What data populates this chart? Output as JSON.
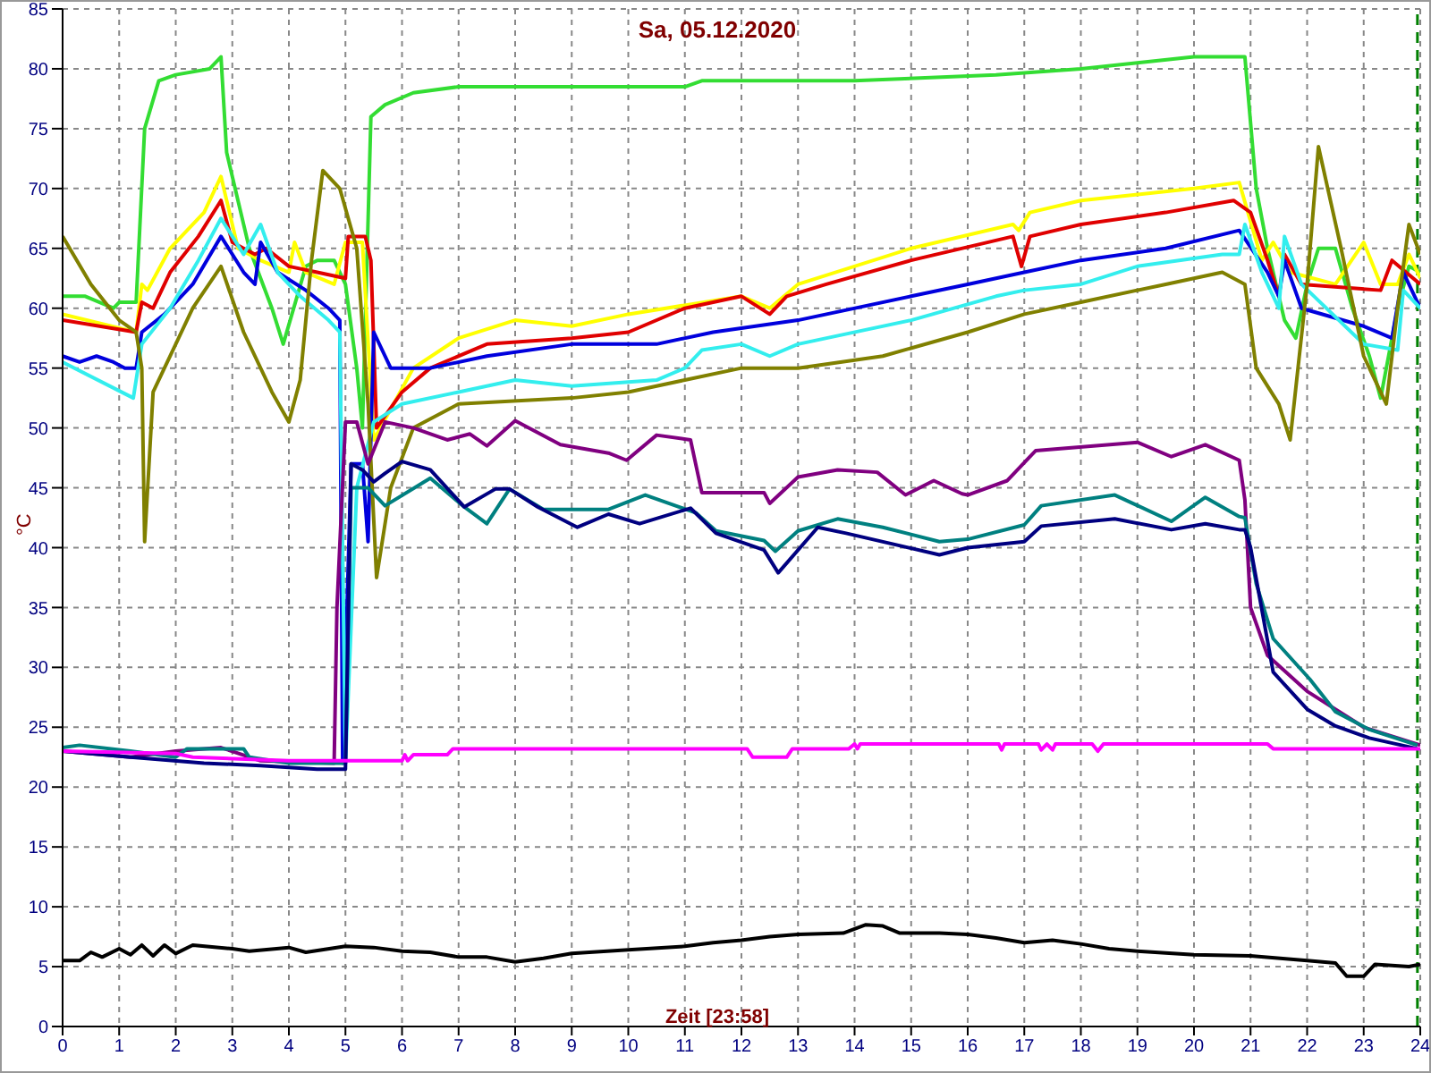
{
  "chart_data": {
    "type": "line",
    "title": "Sa, 05.12.2020",
    "xlabel": "Zeit [23:58]",
    "ylabel": "°C",
    "xlim": [
      0,
      24
    ],
    "ylim": [
      0,
      85
    ],
    "xticks": [
      0,
      1,
      2,
      3,
      4,
      5,
      6,
      7,
      8,
      9,
      10,
      11,
      12,
      13,
      14,
      15,
      16,
      17,
      18,
      19,
      20,
      21,
      22,
      23,
      24
    ],
    "yticks": [
      0,
      5,
      10,
      15,
      20,
      25,
      30,
      35,
      40,
      45,
      50,
      55,
      60,
      65,
      70,
      75,
      80,
      85
    ],
    "grid": true,
    "ref_lines": [
      {
        "axis": "x",
        "value": 23.95,
        "color": "#008000",
        "line_style": "dashed"
      }
    ],
    "series": [
      {
        "color": "#33dd33",
        "x": [
          0,
          0.4,
          0.9,
          1.0,
          1.3,
          1.45,
          1.7,
          2.0,
          2.6,
          2.8,
          2.9,
          3.3,
          3.7,
          3.9,
          4.3,
          4.5,
          4.8,
          5.0,
          5.2,
          5.3,
          5.45,
          5.7,
          6.2,
          7.0,
          11.0,
          11.3,
          14.0,
          16.5,
          18.0,
          19.0,
          20.0,
          20.9,
          21.1,
          21.3,
          21.6,
          21.8,
          22.0,
          22.2,
          22.5,
          22.8,
          23.1,
          23.3,
          23.6,
          23.8,
          24
        ],
        "values": [
          61,
          61,
          60,
          60.5,
          60.5,
          75,
          79,
          79.5,
          80,
          81,
          73,
          65,
          60,
          57,
          63.5,
          64,
          64,
          62,
          55,
          50,
          76,
          77,
          78,
          78.5,
          78.5,
          79,
          79,
          79.5,
          80,
          80.5,
          81,
          81,
          70,
          65,
          59,
          57.5,
          62,
          65,
          65,
          60,
          56,
          52.5,
          60,
          63.5,
          63
        ]
      },
      {
        "color": "#ffff00",
        "x": [
          0,
          1.3,
          1.4,
          1.5,
          1.9,
          2.5,
          2.8,
          3.1,
          3.5,
          4.0,
          4.1,
          4.3,
          4.8,
          5.0,
          5.3,
          5.5,
          6.2,
          7,
          8,
          9,
          10,
          12,
          12.5,
          13,
          15,
          16.8,
          16.9,
          17.1,
          18,
          20,
          20.8,
          21.2,
          21.4,
          21.7,
          22.5,
          23.0,
          23.3,
          23.6,
          23.8,
          24
        ],
        "values": [
          59.5,
          58,
          62,
          61.5,
          65,
          68,
          71,
          65,
          64,
          63,
          65.5,
          63,
          62,
          65.5,
          65.5,
          49,
          55,
          57.5,
          59,
          58.5,
          59.5,
          61,
          60,
          62,
          65,
          67,
          66.5,
          68,
          69,
          70,
          70.5,
          64,
          65.5,
          63,
          62,
          65.5,
          62,
          62,
          64.5,
          62.5
        ]
      },
      {
        "color": "#e00000",
        "x": [
          0,
          1.3,
          1.4,
          1.6,
          1.9,
          2.4,
          2.8,
          3.0,
          3.4,
          3.6,
          4.0,
          4.5,
          5.0,
          5.05,
          5.35,
          5.45,
          5.55,
          6.0,
          6.5,
          7.5,
          9,
          10,
          11,
          12,
          12.5,
          12.8,
          13.5,
          15,
          16.8,
          16.95,
          17.1,
          18,
          19.5,
          20.7,
          21.0,
          21.3,
          21.5,
          21.6,
          21.9,
          23.3,
          23.5,
          24
        ],
        "values": [
          59,
          58,
          60.5,
          60,
          63,
          66,
          69,
          65.5,
          64.5,
          65,
          63.5,
          63,
          62.5,
          66,
          66,
          64,
          50,
          53,
          55,
          57,
          57.5,
          58,
          60,
          61,
          59.5,
          61,
          62,
          64,
          66,
          63.5,
          66,
          67,
          68,
          69,
          68,
          64,
          61,
          64.5,
          62,
          61.5,
          64,
          62
        ]
      },
      {
        "color": "#0000dd",
        "x": [
          0,
          0.3,
          0.6,
          0.9,
          1.1,
          1.3,
          1.4,
          1.8,
          2.3,
          2.8,
          3.2,
          3.4,
          3.5,
          3.8,
          4.3,
          4.7,
          4.9,
          4.95,
          5.1,
          5.3,
          5.4,
          5.5,
          5.8,
          6.5,
          7.5,
          9,
          10.5,
          11.5,
          13,
          15,
          16,
          17,
          18,
          19.5,
          20.8,
          21.3,
          21.5,
          21.6,
          21.9,
          23,
          23.5,
          23.7,
          24
        ],
        "values": [
          56,
          55.5,
          56,
          55.5,
          55,
          55,
          58,
          59.5,
          62,
          66,
          63,
          62,
          65.5,
          63,
          61.5,
          60,
          59,
          22,
          47,
          47,
          40.5,
          58,
          55,
          55,
          56,
          57,
          57,
          58,
          59,
          61,
          62,
          63,
          64,
          65,
          66.5,
          63,
          61,
          64,
          60,
          58.5,
          57.5,
          63,
          60
        ]
      },
      {
        "color": "#33eeee",
        "x": [
          0,
          1.25,
          1.4,
          1.9,
          2.4,
          2.8,
          3.2,
          3.5,
          3.8,
          4.2,
          4.7,
          4.9,
          5.0,
          5.2,
          5.5,
          6,
          7,
          8,
          9,
          10.5,
          11,
          11.3,
          12,
          12.5,
          13,
          15,
          16.5,
          17,
          18,
          19,
          20.5,
          20.8,
          20.9,
          21.2,
          21.5,
          21.6,
          21.9,
          23,
          23.6,
          23.7,
          24
        ],
        "values": [
          55.5,
          52.5,
          57,
          60,
          64,
          67.5,
          64.5,
          67,
          63,
          61,
          59,
          58,
          22,
          45,
          50.5,
          52,
          53,
          54,
          53.5,
          54,
          55,
          56.5,
          57,
          56,
          57,
          59,
          61,
          61.5,
          62,
          63.5,
          64.5,
          64.5,
          67,
          63,
          60,
          66,
          62,
          57,
          56.5,
          61.5,
          60
        ]
      },
      {
        "color": "#808000",
        "x": [
          0,
          0.5,
          1.0,
          1.3,
          1.4,
          1.45,
          1.6,
          2.0,
          2.3,
          2.8,
          3.2,
          3.7,
          4.0,
          4.2,
          4.4,
          4.6,
          4.9,
          5.2,
          5.4,
          5.55,
          5.8,
          6.2,
          7,
          9,
          10,
          11,
          12,
          13,
          14.5,
          16,
          17,
          18,
          19.5,
          20.5,
          20.9,
          21.1,
          21.5,
          21.7,
          22.0,
          22.2,
          22.6,
          23.0,
          23.2,
          23.4,
          23.6,
          23.8,
          24
        ],
        "values": [
          66,
          62,
          59,
          58,
          55,
          40.5,
          53,
          57,
          60,
          63.5,
          58,
          53,
          50.5,
          54,
          64,
          71.5,
          70,
          65,
          52,
          37.5,
          45,
          50,
          52,
          52.5,
          53,
          54,
          55,
          55,
          56,
          58,
          59.5,
          60.5,
          62,
          63,
          62,
          55,
          52,
          49,
          62,
          73.5,
          65,
          56,
          54,
          52,
          60,
          67,
          64.5
        ]
      },
      {
        "color": "#800080",
        "x": [
          0,
          1.2,
          2,
          2.8,
          3.5,
          4.8,
          4.85,
          5.0,
          5.2,
          5.4,
          5.7,
          6.2,
          6.8,
          7.2,
          7.5,
          8.0,
          8.8,
          9.65,
          9.97,
          10.5,
          11.1,
          11.3,
          12.4,
          12.5,
          13.0,
          13.7,
          14.4,
          14.9,
          15.4,
          15.9,
          16.0,
          16.7,
          17.2,
          19.0,
          19.6,
          20.2,
          20.8,
          20.9,
          21.0,
          21.3,
          22,
          23,
          24
        ],
        "values": [
          23,
          22.5,
          23,
          23.3,
          22.2,
          22,
          35,
          50.5,
          50.5,
          47,
          50.5,
          50,
          49,
          49.5,
          48.5,
          50.6,
          48.6,
          47.9,
          47.3,
          49.4,
          49,
          44.6,
          44.6,
          43.7,
          45.9,
          46.5,
          46.3,
          44.4,
          45.6,
          44.5,
          44.4,
          45.6,
          48.1,
          48.8,
          47.6,
          48.6,
          47.3,
          44,
          35,
          31,
          28,
          25,
          23.5
        ]
      },
      {
        "color": "#008080",
        "x": [
          0,
          0.3,
          1.2,
          2,
          2.2,
          3.2,
          3.3,
          4,
          5.0,
          5.1,
          5.4,
          5.7,
          6.5,
          7.1,
          7.5,
          7.9,
          8.5,
          9.65,
          10.3,
          11.2,
          11.55,
          12.4,
          12.6,
          13.0,
          13.7,
          14.5,
          15.5,
          16.0,
          17.0,
          17.3,
          18.6,
          19.6,
          20.2,
          20.8,
          20.9,
          21.1,
          21.4,
          22.05,
          22.5,
          23.1,
          23.95
        ],
        "values": [
          23.3,
          23.5,
          23,
          22.5,
          23.2,
          23.2,
          22.5,
          22,
          22,
          45,
          45,
          43.5,
          45.8,
          43.4,
          42,
          44.9,
          43.2,
          43.2,
          44.4,
          42.9,
          41.4,
          40.6,
          39.7,
          41.4,
          42.4,
          41.7,
          40.5,
          40.7,
          41.9,
          43.5,
          44.4,
          42.2,
          44.2,
          42.6,
          42.5,
          37,
          32.4,
          29,
          26.3,
          24.8,
          23.5
        ]
      },
      {
        "color": "#000080",
        "x": [
          0,
          1.2,
          2.5,
          3.5,
          4.5,
          5.0,
          5.1,
          5.3,
          5.5,
          5.7,
          6,
          6.5,
          7.1,
          7.65,
          7.9,
          8.4,
          9.1,
          9.65,
          10.2,
          11.1,
          11.55,
          12.4,
          12.65,
          13.35,
          13.85,
          15.5,
          16.0,
          17.0,
          17.3,
          18.6,
          19.6,
          20.2,
          20.8,
          20.9,
          21.0,
          21.4,
          22.0,
          22.5,
          23.1,
          23.95
        ],
        "values": [
          23,
          22.5,
          22,
          21.8,
          21.5,
          21.5,
          47,
          46.5,
          45.5,
          46.2,
          47.2,
          46.5,
          43.4,
          44.9,
          44.9,
          43.4,
          41.7,
          42.8,
          42,
          43.3,
          41.2,
          39.8,
          37.9,
          41.7,
          41.2,
          39.4,
          40,
          40.5,
          41.8,
          42.4,
          41.5,
          42,
          41.5,
          41.5,
          40,
          29.6,
          26.5,
          25.1,
          24.1,
          23.2
        ]
      },
      {
        "color": "#ff00ff",
        "x": [
          0,
          2.0,
          2.3,
          4,
          6.0,
          6.05,
          6.1,
          6.2,
          6.8,
          6.9,
          12.1,
          12.2,
          12.8,
          12.9,
          13.9,
          14.0,
          14.05,
          14.1,
          16.55,
          16.6,
          16.65,
          17.25,
          17.3,
          17.4,
          17.5,
          17.55,
          18.2,
          18.3,
          18.4,
          21.3,
          21.4,
          24
        ],
        "values": [
          23,
          22.8,
          22.5,
          22.2,
          22.2,
          22.7,
          22.2,
          22.7,
          22.7,
          23.2,
          23.2,
          22.5,
          22.5,
          23.2,
          23.2,
          23.6,
          23.2,
          23.6,
          23.6,
          23.1,
          23.6,
          23.6,
          23.1,
          23.6,
          23.1,
          23.6,
          23.6,
          23,
          23.6,
          23.6,
          23.2,
          23.2
        ]
      },
      {
        "color": "#000000",
        "x": [
          0,
          0.3,
          0.5,
          0.7,
          1,
          1.2,
          1.4,
          1.6,
          1.8,
          2,
          2.3,
          3,
          3.3,
          4,
          4.3,
          5,
          5.5,
          6,
          6.5,
          7,
          7.5,
          8,
          8.5,
          9,
          10,
          11,
          11.5,
          12,
          12.5,
          13,
          13.8,
          14.2,
          14.5,
          14.8,
          15.5,
          16,
          16.5,
          17,
          17.5,
          18,
          18.5,
          19,
          20,
          21,
          22,
          22.5,
          22.7,
          23,
          23.2,
          23.8,
          24
        ],
        "values": [
          5.5,
          5.5,
          6.2,
          5.8,
          6.5,
          6,
          6.8,
          5.9,
          6.8,
          6.1,
          6.8,
          6.5,
          6.3,
          6.6,
          6.2,
          6.7,
          6.6,
          6.3,
          6.2,
          5.8,
          5.8,
          5.4,
          5.7,
          6.1,
          6.4,
          6.7,
          7,
          7.2,
          7.5,
          7.7,
          7.8,
          8.5,
          8.4,
          7.8,
          7.8,
          7.7,
          7.4,
          7,
          7.2,
          6.9,
          6.5,
          6.3,
          6,
          5.9,
          5.5,
          5.3,
          4.2,
          4.2,
          5.2,
          5,
          5.2
        ]
      }
    ]
  }
}
